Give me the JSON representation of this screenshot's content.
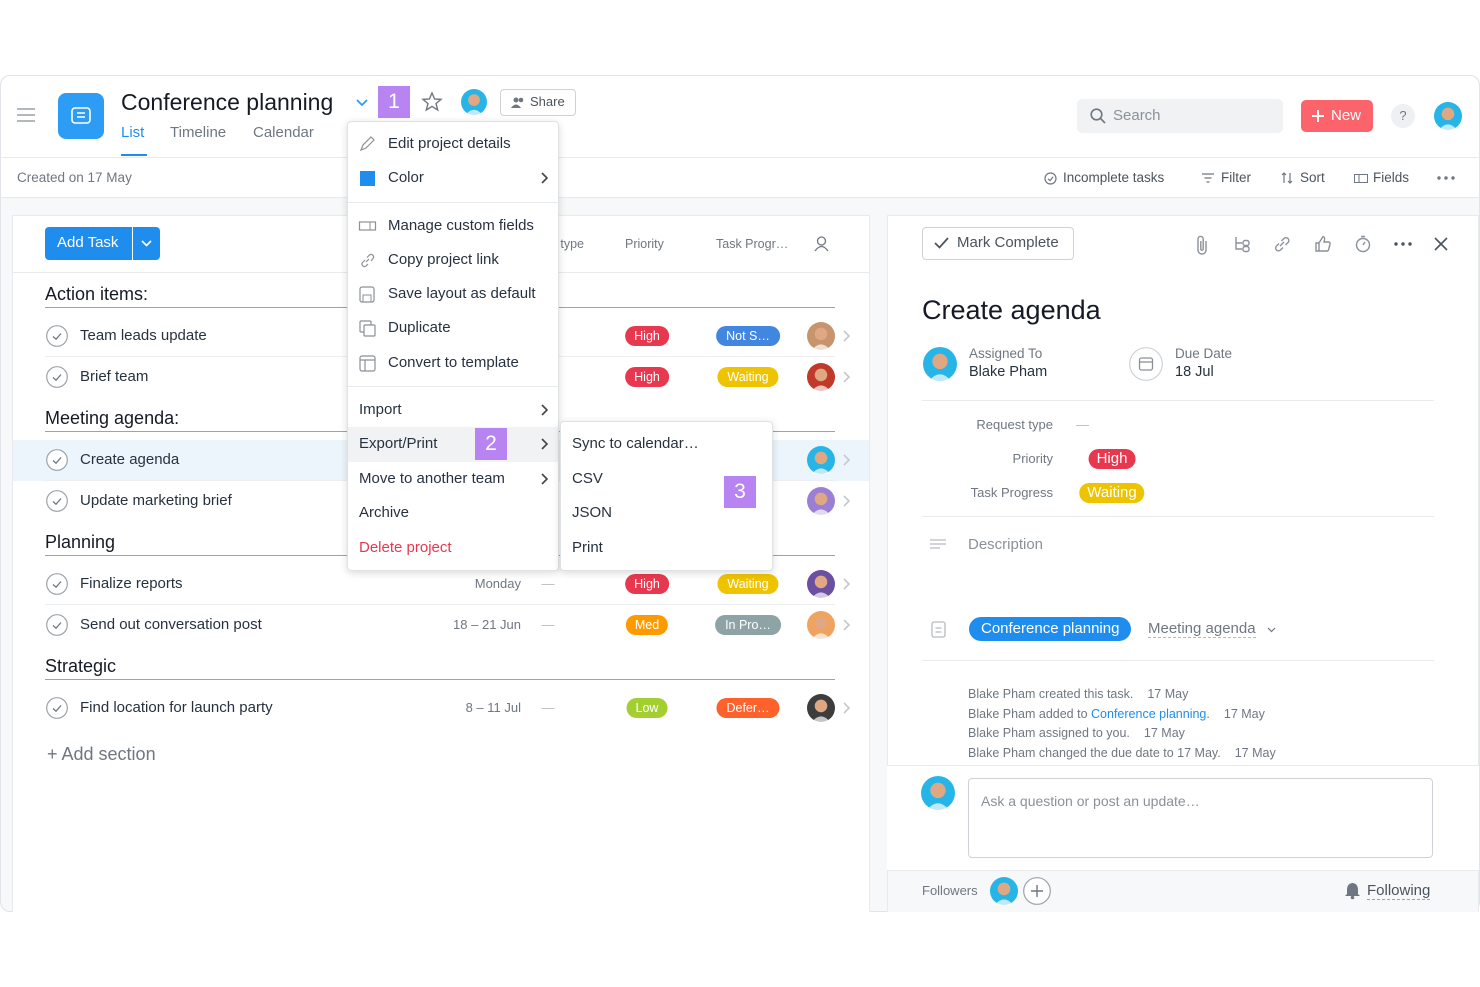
{
  "header": {
    "title": "Conference planning",
    "badge": "1",
    "share": "Share",
    "tabs": [
      "List",
      "Timeline",
      "Calendar"
    ],
    "search": "Search",
    "new": "New",
    "help": "?"
  },
  "toolbar": {
    "created": "Created on 17 May",
    "incomplete": "Incomplete tasks",
    "filter": "Filter",
    "sort": "Sort",
    "fields": "Fields"
  },
  "list": {
    "add_task": "Add Task",
    "columns": [
      "Request type",
      "Priority",
      "Task Progr…"
    ],
    "sections": [
      {
        "name": "Action items:",
        "tasks": [
          {
            "name": "Team leads update",
            "priority": "High",
            "progress": "Not S…"
          },
          {
            "name": "Brief team",
            "priority": "High",
            "progress": "Waiting"
          }
        ]
      },
      {
        "name": "Meeting agenda:",
        "tasks": [
          {
            "name": "Create agenda"
          },
          {
            "name": "Update marketing brief"
          }
        ]
      },
      {
        "name": "Planning",
        "tasks": [
          {
            "name": "Finalize reports",
            "date": "Monday",
            "request": "—",
            "priority": "High",
            "progress": "Waiting"
          },
          {
            "name": "Send out conversation post",
            "date": "18 – 21 Jun",
            "request": "—",
            "priority": "Med",
            "progress": "In Pro…"
          }
        ]
      },
      {
        "name": "Strategic",
        "tasks": [
          {
            "name": "Find location for launch party",
            "date": "8 – 11 Jul",
            "request": "—",
            "priority": "Low",
            "progress": "Defer…"
          }
        ]
      }
    ],
    "add_section": "+ Add section"
  },
  "menu": {
    "items": [
      "Edit project details",
      "Color",
      "Manage custom fields",
      "Copy project link",
      "Save layout as default",
      "Duplicate",
      "Convert to template",
      "Import",
      "Export/Print",
      "Move to another team",
      "Archive",
      "Delete project"
    ],
    "badge": "2"
  },
  "submenu": {
    "items": [
      "Sync to calendar…",
      "CSV",
      "JSON",
      "Print"
    ],
    "badge": "3"
  },
  "detail": {
    "mark_complete": "Mark Complete",
    "title": "Create agenda",
    "assigned_label": "Assigned To",
    "assignee": "Blake Pham",
    "due_label": "Due Date",
    "due": "18 Jul",
    "fields": [
      {
        "label": "Request type",
        "value": "—"
      },
      {
        "label": "Priority",
        "value": "High"
      },
      {
        "label": "Task Progress",
        "value": "Waiting"
      }
    ],
    "description": "Description",
    "project": "Conference planning",
    "section": "Meeting agenda",
    "activity": [
      {
        "text": "Blake Pham created this task.",
        "date": "17 May"
      },
      {
        "text": "Blake Pham added to",
        "link": "Conference planning",
        "after": ".",
        "date": "17 May"
      },
      {
        "text": "Blake Pham assigned to you.",
        "date": "17 May"
      },
      {
        "text": "Blake Pham changed the due date to 17 May.",
        "date": "17 May"
      }
    ],
    "comment": "Ask a question or post an update…",
    "followers": "Followers",
    "following": "Following"
  }
}
